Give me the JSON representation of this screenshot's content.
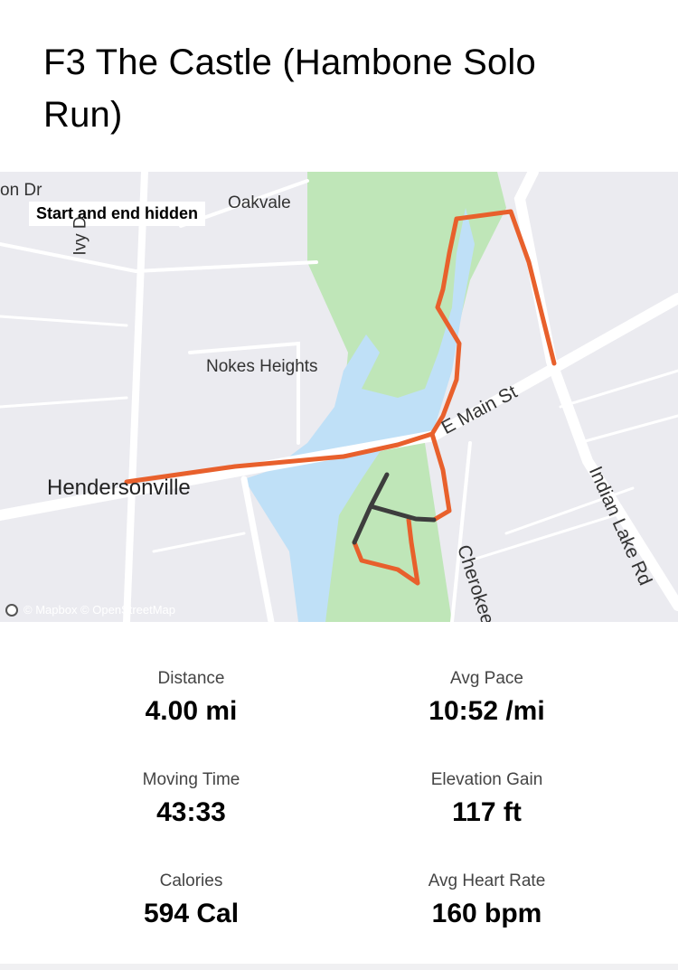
{
  "title": "F3 The Castle (Hambone Solo Run)",
  "map": {
    "privacy_badge": "Start and end hidden",
    "labels": {
      "oakvale": "Oakvale",
      "nokes": "Nokes Heights",
      "hendersonville": "Hendersonville",
      "main_st": "E Main St",
      "indian_lake": "Indian Lake Rd",
      "cherokee": "Cherokee",
      "ivy": "Ivy D",
      "top_left": "on Dr"
    },
    "attribution": "© Mapbox © OpenStreetMap",
    "colors": {
      "route": "#e8602c",
      "hidden_route": "#3d3d3d",
      "water": "#bfe0f7",
      "park": "#bfe6b8",
      "land": "#ebebf0"
    }
  },
  "stats": [
    {
      "label": "Distance",
      "value": "4.00 mi"
    },
    {
      "label": "Avg Pace",
      "value": "10:52 /mi"
    },
    {
      "label": "Moving Time",
      "value": "43:33"
    },
    {
      "label": "Elevation Gain",
      "value": "117 ft"
    },
    {
      "label": "Calories",
      "value": "594 Cal"
    },
    {
      "label": "Avg Heart Rate",
      "value": "160 bpm"
    }
  ]
}
